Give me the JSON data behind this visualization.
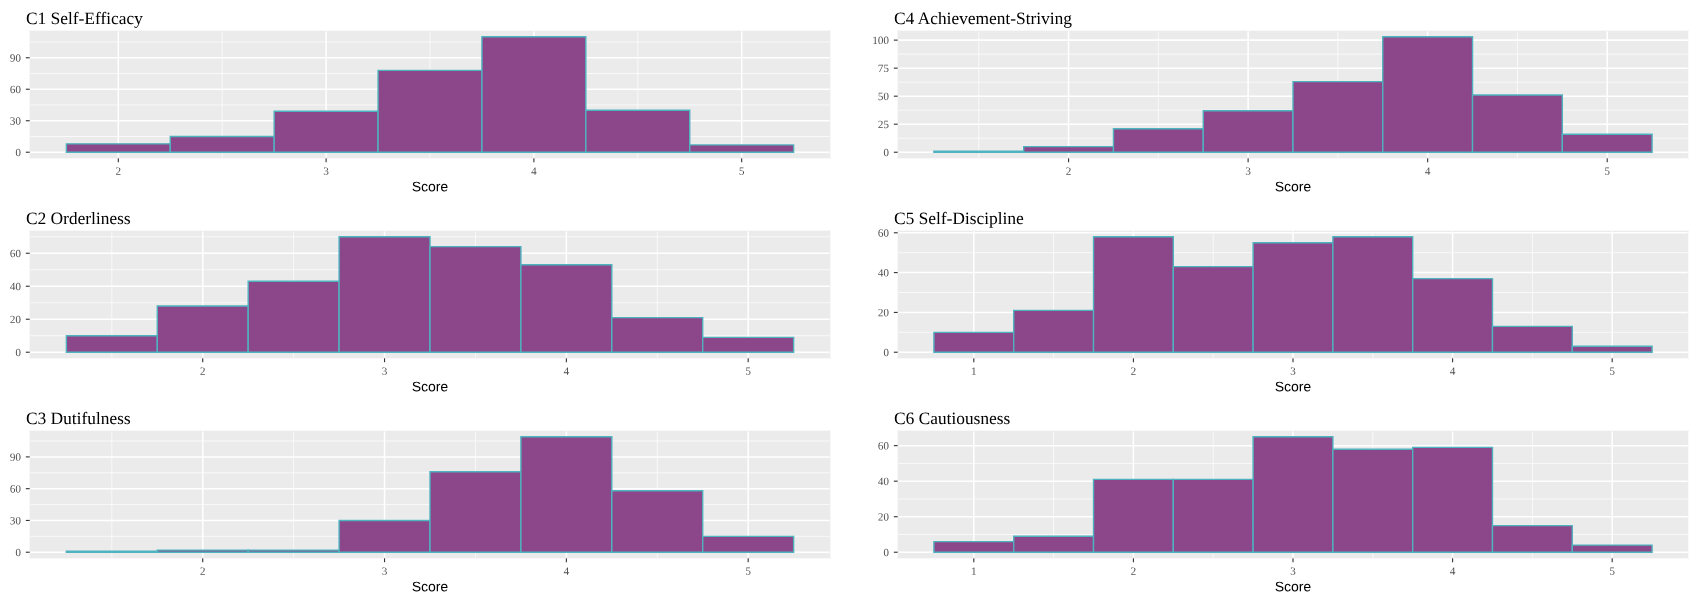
{
  "chart_data": [
    {
      "type": "histogram",
      "title": "C1 Self-Efficacy",
      "xlabel": "Score",
      "bins": [
        1.75,
        2.25,
        2.75,
        3.25,
        3.75,
        4.25,
        4.75,
        5.25
      ],
      "values": [
        8,
        15,
        39,
        78,
        110,
        40,
        7
      ],
      "color": "#8b4789",
      "xlim": [
        1.575,
        5.425
      ],
      "xticks": [
        2,
        3,
        4,
        5
      ],
      "ylim": [
        -5.5,
        115.5
      ],
      "yticks": [
        0,
        30,
        60,
        90
      ],
      "grid": true
    },
    {
      "type": "histogram",
      "title": "C2 Orderliness",
      "xlabel": "Score",
      "bins": [
        1.25,
        1.75,
        2.25,
        2.75,
        3.25,
        3.75,
        4.25,
        4.75,
        5.25
      ],
      "values": [
        10,
        28,
        43,
        70,
        64,
        53,
        21,
        9
      ],
      "color": "#8b4789",
      "xlim": [
        1.05,
        5.45
      ],
      "xticks": [
        2,
        3,
        4,
        5
      ],
      "ylim": [
        -3.5,
        73.5
      ],
      "yticks": [
        0,
        20,
        40,
        60
      ],
      "grid": true
    },
    {
      "type": "histogram",
      "title": "C3 Dutifulness",
      "xlabel": "Score",
      "bins": [
        1.25,
        1.75,
        2.25,
        2.75,
        3.25,
        3.75,
        4.25,
        4.75,
        5.25
      ],
      "values": [
        1,
        2,
        2,
        30,
        76,
        109,
        58,
        15
      ],
      "color": "#8b4789",
      "xlim": [
        1.05,
        5.45
      ],
      "xticks": [
        2,
        3,
        4,
        5
      ],
      "ylim": [
        -5.45,
        114.45
      ],
      "yticks": [
        0,
        30,
        60,
        90
      ],
      "grid": true
    },
    {
      "type": "histogram",
      "title": "C4 Achievement-Striving",
      "xlabel": "Score",
      "bins": [
        1.25,
        1.75,
        2.25,
        2.75,
        3.25,
        3.75,
        4.25,
        4.75,
        5.25
      ],
      "values": [
        1,
        5,
        21,
        37,
        63,
        103,
        51,
        16
      ],
      "color": "#8b4789",
      "xlim": [
        1.05,
        5.45
      ],
      "xticks": [
        2,
        3,
        4,
        5
      ],
      "ylim": [
        -5.15,
        108.15
      ],
      "yticks": [
        0,
        25,
        50,
        75,
        100
      ],
      "grid": true
    },
    {
      "type": "histogram",
      "title": "C5 Self-Discipline",
      "xlabel": "Score",
      "bins": [
        0.75,
        1.25,
        1.75,
        2.25,
        2.75,
        3.25,
        3.75,
        4.25,
        4.75,
        5.25
      ],
      "values": [
        10,
        21,
        58,
        43,
        55,
        58,
        37,
        13,
        3
      ],
      "color": "#8b4789",
      "xlim": [
        0.525,
        5.475
      ],
      "xticks": [
        1,
        2,
        3,
        4,
        5
      ],
      "ylim": [
        -2.9,
        60.9
      ],
      "yticks": [
        0,
        20,
        40,
        60
      ],
      "grid": true
    },
    {
      "type": "histogram",
      "title": "C6 Cautiousness",
      "xlabel": "Score",
      "bins": [
        0.75,
        1.25,
        1.75,
        2.25,
        2.75,
        3.25,
        3.75,
        4.25,
        4.75,
        5.25
      ],
      "values": [
        6,
        9,
        41,
        41,
        65,
        58,
        59,
        15,
        4
      ],
      "color": "#8b4789",
      "xlim": [
        0.525,
        5.475
      ],
      "xticks": [
        1,
        2,
        3,
        4,
        5
      ],
      "ylim": [
        -3.25,
        68.25
      ],
      "yticks": [
        0,
        20,
        40,
        60
      ],
      "grid": true
    }
  ]
}
